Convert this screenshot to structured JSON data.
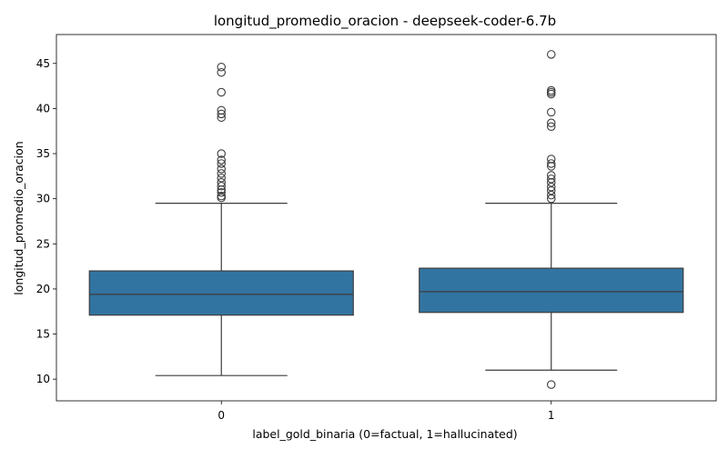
{
  "chart_data": {
    "type": "box",
    "title": "longitud_promedio_oracion - deepseek-coder-6.7b",
    "xlabel": "label_gold_binaria (0=factual, 1=hallucinated)",
    "ylabel": "longitud_promedio_oracion",
    "categories": [
      "0",
      "1"
    ],
    "ylim": [
      7.6,
      48.2
    ],
    "yticks": [
      10,
      15,
      20,
      25,
      30,
      35,
      40,
      45
    ],
    "grid": false,
    "colors": {
      "box_fill": "#3274a1",
      "line": "#3d3d3d"
    },
    "boxes": [
      {
        "category": "0",
        "whisker_low": 10.4,
        "q1": 17.1,
        "median": 19.4,
        "q3": 22.0,
        "whisker_high": 29.5,
        "outliers": [
          30.1,
          30.3,
          30.7,
          31.0,
          31.4,
          31.8,
          32.3,
          32.8,
          33.3,
          33.9,
          34.3,
          35.0,
          39.0,
          39.4,
          39.8,
          41.8,
          44.0,
          44.6
        ]
      },
      {
        "category": "1",
        "whisker_low": 11.0,
        "q1": 17.4,
        "median": 19.7,
        "q3": 22.3,
        "whisker_high": 29.5,
        "outliers": [
          9.4,
          30.0,
          30.4,
          30.9,
          31.3,
          31.8,
          32.2,
          32.6,
          33.6,
          33.9,
          34.4,
          38.0,
          38.4,
          39.6,
          41.6,
          41.8,
          42.0,
          46.0
        ]
      }
    ]
  }
}
